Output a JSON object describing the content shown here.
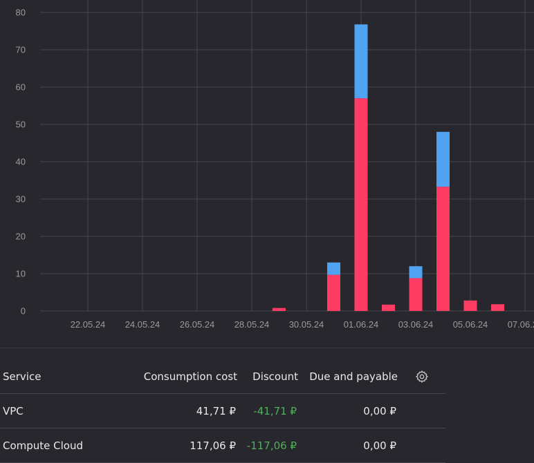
{
  "chart_data": {
    "type": "bar",
    "stacked": true,
    "ylim": [
      0,
      80
    ],
    "yticks": [
      "0",
      "10",
      "20",
      "30",
      "40",
      "50",
      "60",
      "70",
      "80"
    ],
    "xticks": [
      "22.05.24",
      "24.05.24",
      "26.05.24",
      "28.05.24",
      "30.05.24",
      "01.06.24",
      "03.06.24",
      "05.06.24",
      "07.06.24"
    ],
    "categories": [
      "29.05.24",
      "31.05.24",
      "01.06.24",
      "02.06.24",
      "03.06.24",
      "04.06.24",
      "05.06.24",
      "06.06.24"
    ],
    "series": [
      {
        "color": "#ff3d64",
        "values": [
          0.8,
          9.7,
          57.0,
          1.7,
          8.8,
          33.3,
          2.8,
          1.8
        ]
      },
      {
        "color": "#4fa3f0",
        "values": [
          0,
          3.3,
          19.8,
          0,
          3.2,
          14.7,
          0,
          0
        ]
      }
    ],
    "grid": true
  },
  "table": {
    "headers": {
      "service": "Service",
      "consumption": "Consumption cost",
      "discount": "Discount",
      "due": "Due and payable"
    },
    "settings_icon": "gear-icon",
    "rows": [
      {
        "service": "VPC",
        "consumption": "41,71 ₽",
        "discount": "-41,71 ₽",
        "due": "0,00 ₽"
      },
      {
        "service": "Compute Cloud",
        "consumption": "117,06 ₽",
        "discount": "-117,06 ₽",
        "due": "0,00 ₽"
      }
    ]
  }
}
